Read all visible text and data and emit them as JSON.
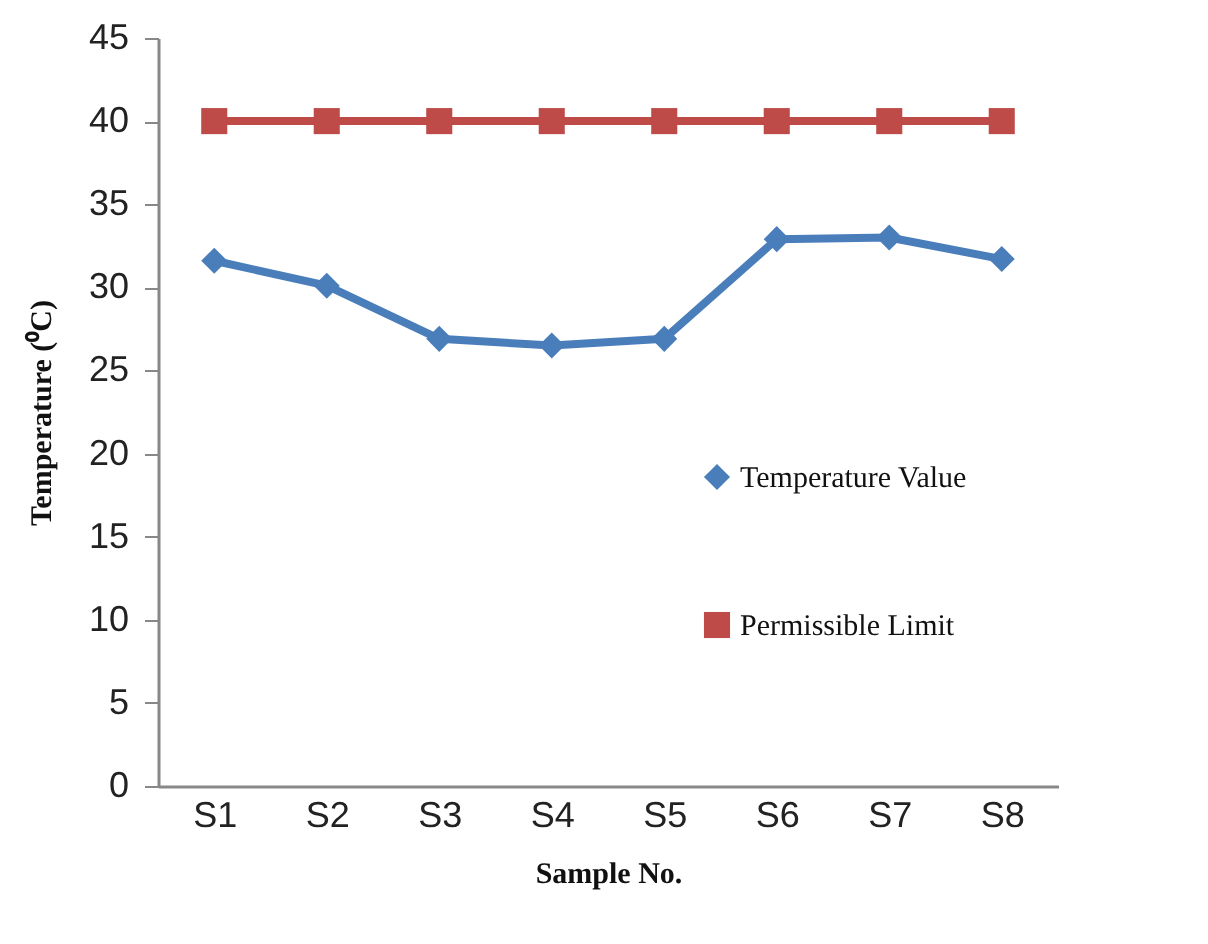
{
  "chart_data": {
    "type": "line",
    "xlabel": "Sample No.",
    "ylabel": "Temperature (⁰C)",
    "categories": [
      "S1",
      "S2",
      "S3",
      "S4",
      "S5",
      "S6",
      "S7",
      "S8"
    ],
    "series": [
      {
        "name": "Temperature Value",
        "color": "#4a7ebb",
        "marker": "diamond",
        "values": [
          31.6,
          30.1,
          26.9,
          26.5,
          26.9,
          32.9,
          33.0,
          31.7
        ]
      },
      {
        "name": "Permissible Limit",
        "color": "#be4b48",
        "marker": "square",
        "values": [
          40,
          40,
          40,
          40,
          40,
          40,
          40,
          40
        ]
      }
    ],
    "ylim": [
      0,
      45
    ],
    "yticks": [
      0,
      5,
      10,
      15,
      20,
      25,
      30,
      35,
      40,
      45
    ],
    "legend": "right",
    "line_style": "solid"
  }
}
